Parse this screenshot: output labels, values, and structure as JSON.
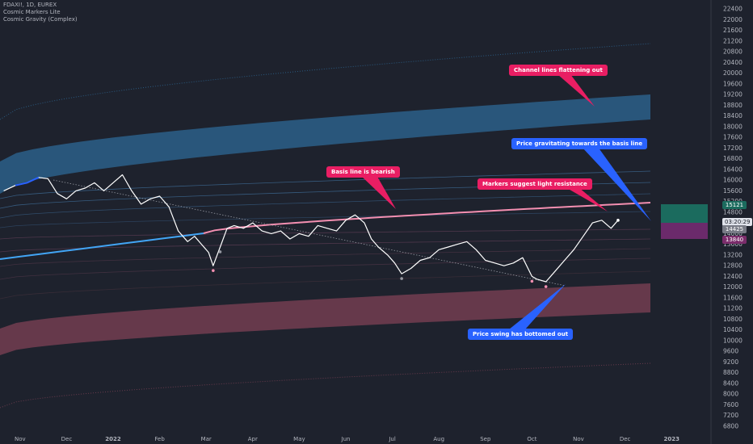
{
  "legend": {
    "symbol": "FDAXI!, 1D, EUREX",
    "indicator1": "Cosmic Markers Lite",
    "indicator2": "Cosmic Gravity (Complex)"
  },
  "colors": {
    "background": "#1e222d",
    "price": "#ffffff",
    "upper_band": "#2a5a80",
    "lower_band": "#6a3b4d",
    "basis": "#f48fb1",
    "annotation_red": "#e91e63",
    "annotation_blue": "#2962ff"
  },
  "annotations": {
    "channel": "Channel lines flattening out",
    "gravitating": "Price gravitating towards the basis line",
    "basis": "Basis line is bearish",
    "markers": "Markers suggest light resistance",
    "bottomed": "Price swing has bottomed out"
  },
  "price_tags": {
    "upper": "15121",
    "countdown": "03:20:29",
    "last": "14425",
    "lower": "13840"
  },
  "chart_data": {
    "type": "line",
    "title": "FDAXI!, 1D, EUREX",
    "ylim": [
      6600,
      22600
    ],
    "y_ticks": [
      "22400",
      "22000",
      "21600",
      "21200",
      "20800",
      "20400",
      "20000",
      "19600",
      "19200",
      "18800",
      "18400",
      "18000",
      "17600",
      "17200",
      "16800",
      "16400",
      "16000",
      "15600",
      "15200",
      "14800",
      "14400",
      "14000",
      "13600",
      "13200",
      "12800",
      "12400",
      "12000",
      "11600",
      "11200",
      "10800",
      "10400",
      "10000",
      "9600",
      "9200",
      "8800",
      "8400",
      "8000",
      "7600",
      "7200",
      "6800"
    ],
    "x_ticks": [
      {
        "label": "Nov",
        "month": -2
      },
      {
        "label": "Dec",
        "month": -1
      },
      {
        "label": "2022",
        "month": 0
      },
      {
        "label": "Feb",
        "month": 1
      },
      {
        "label": "Mar",
        "month": 2
      },
      {
        "label": "Apr",
        "month": 3
      },
      {
        "label": "May",
        "month": 4
      },
      {
        "label": "Jun",
        "month": 5
      },
      {
        "label": "Jul",
        "month": 6
      },
      {
        "label": "Aug",
        "month": 7
      },
      {
        "label": "Sep",
        "month": 8
      },
      {
        "label": "Oct",
        "month": 9
      },
      {
        "label": "Nov",
        "month": 10
      },
      {
        "label": "Dec",
        "month": 11
      },
      {
        "label": "2023",
        "month": 12
      }
    ],
    "price": {
      "month": [
        -2.35,
        -2.1,
        -1.85,
        -1.6,
        -1.4,
        -1.2,
        -1.0,
        -0.8,
        -0.6,
        -0.4,
        -0.2,
        0.0,
        0.2,
        0.4,
        0.6,
        0.8,
        1.0,
        1.2,
        1.4,
        1.6,
        1.75,
        1.9,
        2.05,
        2.15,
        2.3,
        2.45,
        2.6,
        2.8,
        3.0,
        3.2,
        3.4,
        3.6,
        3.8,
        4.0,
        4.2,
        4.4,
        4.6,
        4.8,
        5.0,
        5.2,
        5.4,
        5.55,
        5.7,
        5.9,
        6.05,
        6.2,
        6.4,
        6.6,
        6.8,
        7.0,
        7.2,
        7.4,
        7.6,
        7.8,
        8.0,
        8.2,
        8.4,
        8.6,
        8.8,
        9.0,
        9.1,
        9.3,
        9.5,
        9.7,
        9.9,
        10.1,
        10.3,
        10.5,
        10.7,
        10.85
      ],
      "values": [
        15600,
        15800,
        15900,
        16100,
        16050,
        15500,
        15300,
        15600,
        15700,
        15900,
        15600,
        15900,
        16200,
        15600,
        15100,
        15300,
        15400,
        15000,
        14100,
        13700,
        13900,
        13600,
        13300,
        12800,
        13500,
        14200,
        14300,
        14200,
        14400,
        14100,
        14000,
        14100,
        13800,
        14000,
        13900,
        14300,
        14200,
        14100,
        14500,
        14700,
        14400,
        13800,
        13500,
        13200,
        12900,
        12500,
        12700,
        13000,
        13100,
        13400,
        13500,
        13600,
        13700,
        13400,
        13000,
        12900,
        12800,
        12900,
        13100,
        12400,
        12300,
        12200,
        12600,
        13000,
        13400,
        13900,
        14400,
        14500,
        14200,
        14500
      ]
    }
  }
}
